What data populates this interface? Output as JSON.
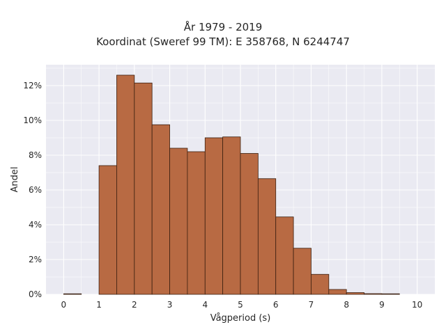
{
  "chart_data": {
    "type": "bar",
    "title_line1": "År 1979 - 2019",
    "title_line2": "Koordinat (Sweref 99 TM): E 358768, N 6244747",
    "xlabel": "Vågperiod (s)",
    "ylabel": "Andel",
    "xlim": [
      -0.5,
      10.5
    ],
    "ylim": [
      0,
      13.2
    ],
    "x_ticks": [
      "0",
      "1",
      "2",
      "3",
      "4",
      "5",
      "6",
      "7",
      "8",
      "9",
      "10"
    ],
    "y_ticks": [
      "0%",
      "2%",
      "4%",
      "6%",
      "8%",
      "10%",
      "12%"
    ],
    "bin_width": 0.5,
    "bin_starts": [
      0,
      0.5,
      1,
      1.5,
      2,
      2.5,
      3,
      3.5,
      4,
      4.5,
      5,
      5.5,
      6,
      6.5,
      7,
      7.5,
      8,
      8.5,
      9,
      9.5
    ],
    "values": [
      0.02,
      0,
      7.4,
      12.6,
      12.15,
      9.75,
      8.4,
      8.2,
      9.0,
      9.05,
      8.1,
      6.65,
      4.45,
      2.65,
      1.15,
      0.28,
      0.1,
      0.04,
      0.02,
      0
    ],
    "grid": true,
    "legend": "none",
    "colors": {
      "bar_fill": "#b86a43",
      "bar_edge": "#3a1f10",
      "plot_bg": "#eaeaf2",
      "grid": "#ffffff"
    }
  }
}
